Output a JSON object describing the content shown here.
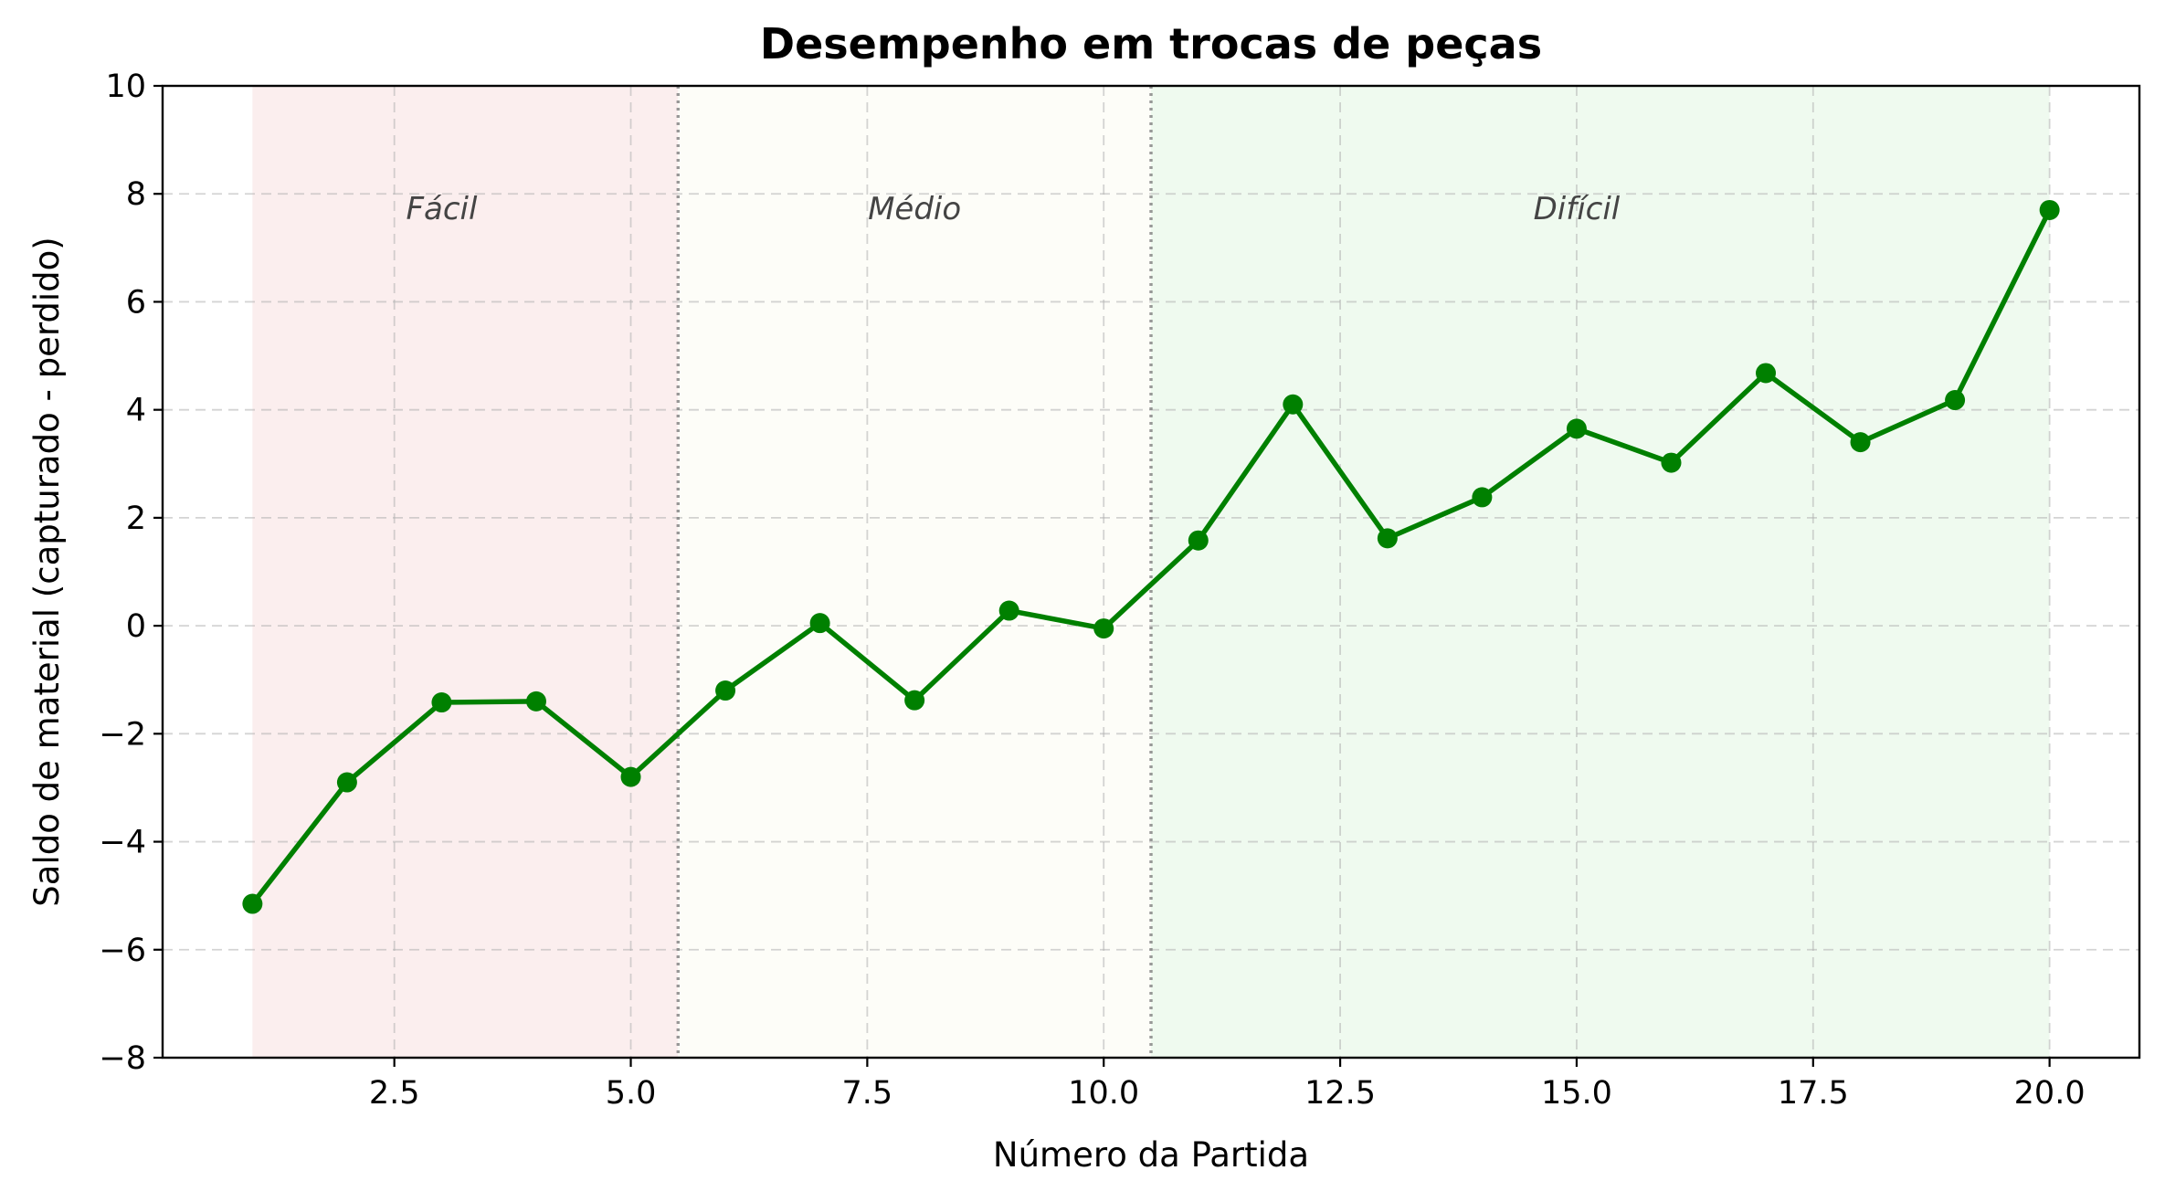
{
  "chart_data": {
    "type": "line",
    "title": "Desempenho em trocas de peças",
    "xlabel": "Número da Partida",
    "ylabel": "Saldo de material (capturado - perdido)",
    "xlim": [
      0.05,
      20.95
    ],
    "ylim": [
      -8,
      10
    ],
    "x_ticks": [
      2.5,
      5.0,
      7.5,
      10.0,
      12.5,
      15.0,
      17.5,
      20.0
    ],
    "x_tick_labels": [
      "2.5",
      "5.0",
      "7.5",
      "10.0",
      "12.5",
      "15.0",
      "17.5",
      "20.0"
    ],
    "y_ticks": [
      -8,
      -6,
      -4,
      -2,
      0,
      2,
      4,
      6,
      8,
      10
    ],
    "y_tick_labels": [
      "−8",
      "−6",
      "−4",
      "−2",
      "0",
      "2",
      "4",
      "6",
      "8",
      "10"
    ],
    "grid": true,
    "series": [
      {
        "color": "#008000",
        "x": [
          1,
          2,
          3,
          4,
          5,
          6,
          7,
          8,
          9,
          10,
          11,
          12,
          13,
          14,
          15,
          16,
          17,
          18,
          19,
          20
        ],
        "y": [
          -5.15,
          -2.9,
          -1.42,
          -1.4,
          -2.8,
          -1.2,
          0.05,
          -1.38,
          0.28,
          -0.05,
          1.58,
          4.1,
          1.62,
          2.38,
          3.65,
          3.02,
          4.68,
          3.4,
          4.18,
          7.7
        ]
      }
    ],
    "regions": [
      {
        "label": "Fácil",
        "x_start": 1,
        "x_end": 5.5,
        "color": "#fbeeee",
        "label_x": 3.0,
        "label_y": 7.6
      },
      {
        "label": "Médio",
        "x_start": 5.5,
        "x_end": 10.5,
        "color": "#fdfdf8",
        "label_x": 8.0,
        "label_y": 7.6
      },
      {
        "label": "Difícil",
        "x_start": 10.5,
        "x_end": 20,
        "color": "#effaef",
        "label_x": 15.0,
        "label_y": 7.6
      }
    ],
    "dividers": [
      5.5,
      10.5
    ]
  }
}
